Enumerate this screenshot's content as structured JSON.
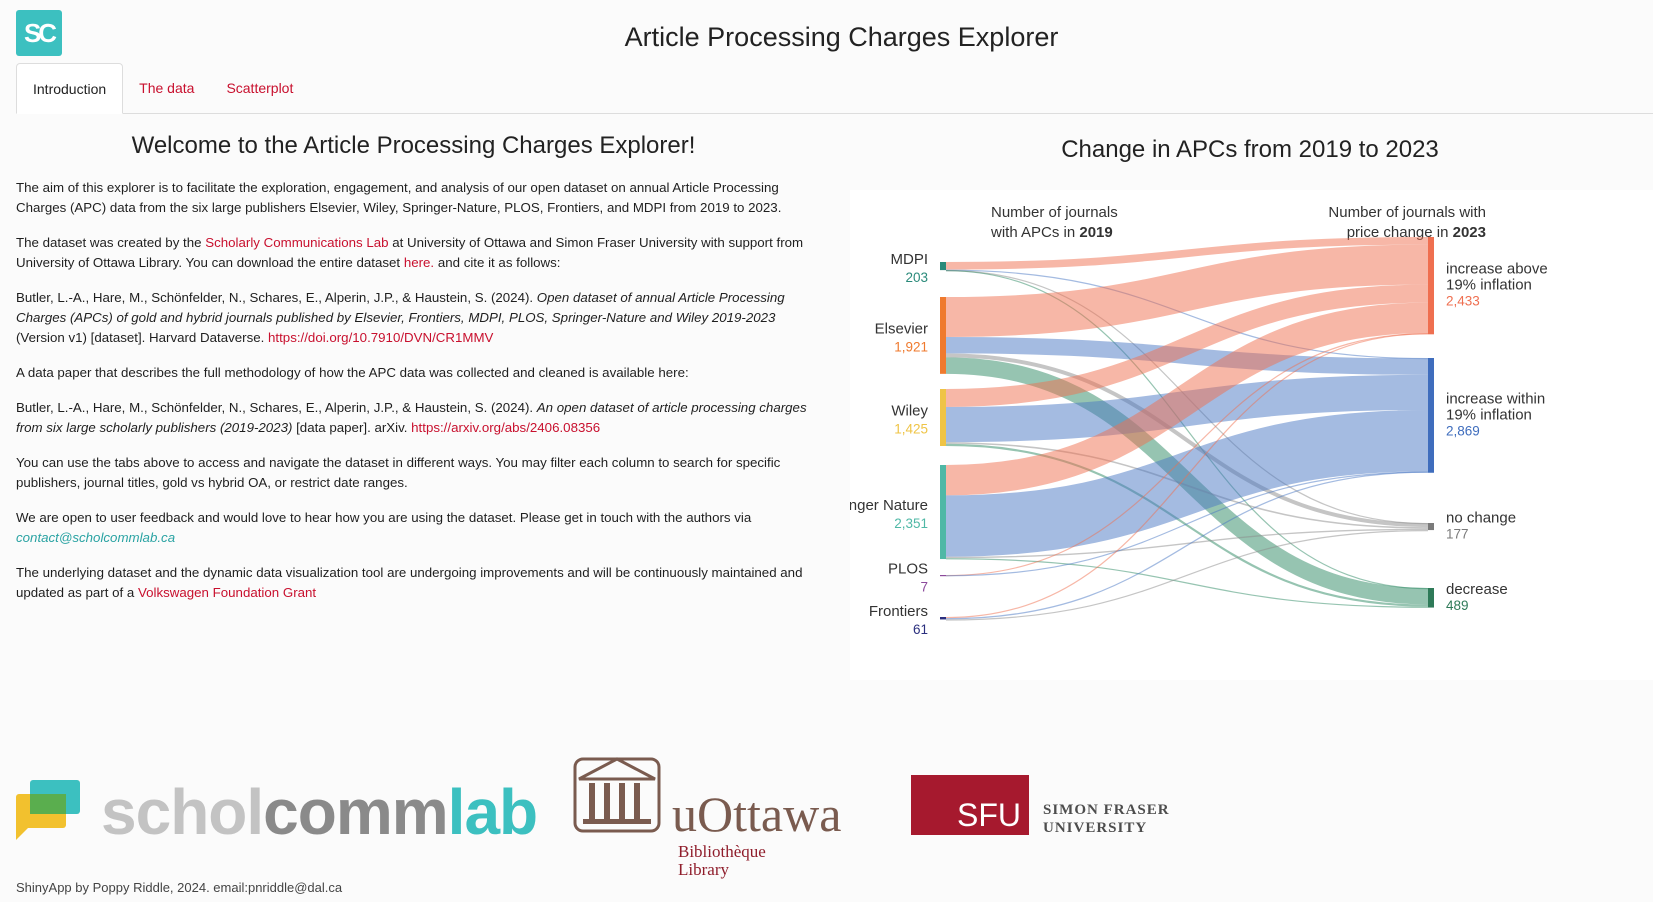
{
  "header": {
    "logo_text": "SC",
    "title": "Article Processing Charges Explorer"
  },
  "tabs": [
    {
      "label": "Introduction"
    },
    {
      "label": "The data"
    },
    {
      "label": "Scatterplot"
    }
  ],
  "intro": {
    "heading": "Welcome to the Article Processing Charges Explorer!",
    "p1": "The aim of this explorer is to facilitate the exploration, engagement, and analysis of our open dataset on annual Article Processing Charges (APC) data from the six large publishers Elsevier, Wiley, Springer-Nature, PLOS, Frontiers, and MDPI from 2019 to 2023.",
    "p2_a": "The dataset was created by the ",
    "p2_link": "Scholarly Communications Lab",
    "p2_b": " at University of Ottawa and Simon Fraser University with support from University of Ottawa Library. You can download the entire dataset ",
    "p2_link2": "here.",
    "p2_c": " and cite it as follows:",
    "cite1_a": "Butler, L.-A., Hare, M., Schönfelder, N., Schares, E., Alperin, J.P., & Haustein, S. (2024). ",
    "cite1_em": "Open dataset of annual Article Processing Charges (APCs) of gold and hybrid journals published by Elsevier, Frontiers, MDPI, PLOS, Springer-Nature and Wiley 2019-2023",
    "cite1_b": " (Version v1) [dataset]. Harvard Dataverse. ",
    "cite1_link": "https://doi.org/10.7910/DVN/CR1MMV",
    "p3": "A data paper that describes the full methodology of how the APC data was collected and cleaned is available here:",
    "cite2_a": "Butler, L.-A., Hare, M., Schönfelder, N., Schares, E., Alperin, J.P., & Haustein, S. (2024). ",
    "cite2_em": "An open dataset of article processing charges from six large scholarly publishers (2019-2023)",
    "cite2_b": " [data paper]. arXiv. ",
    "cite2_link": "https://arxiv.org/abs/2406.08356",
    "p4": "You can use the tabs above to access and navigate the dataset in different ways. You may filter each column to search for specific publishers, journal titles, gold vs hybrid OA, or restrict date ranges.",
    "p5": "We are open to user feedback and would love to hear how you are using the dataset. Please get in touch with the authors via",
    "p5_email": "contact@scholcommlab.ca",
    "p6_a": "The underlying dataset and the dynamic data visualization tool are undergoing improvements and will be continuously maintained and updated as part of a ",
    "p6_link": "Volkswagen Foundation Grant"
  },
  "sankey": {
    "heading": "Change in APCs from 2019 to 2023",
    "left_title_1": "Number of journals",
    "left_title_2a": "with APCs in ",
    "left_title_2b": "2019",
    "right_title_1": "Number of journals with",
    "right_title_2a": "price change in ",
    "right_title_2b": "2023",
    "colors": {
      "increase_above": "#ef6f50",
      "increase_within": "#4a78c4",
      "no_change": "#8c8c8c",
      "decrease": "#2e8a63"
    }
  },
  "chart_data": {
    "type": "sankey",
    "title": "Change in APCs from 2019 to 2023",
    "sources": [
      {
        "name": "MDPI",
        "count": "203",
        "value": 203,
        "color": "#2a8a7a"
      },
      {
        "name": "Elsevier",
        "count": "1,921",
        "value": 1921,
        "color": "#ef7a2e"
      },
      {
        "name": "Wiley",
        "count": "1,425",
        "value": 1425,
        "color": "#efc446"
      },
      {
        "name": "Springer Nature",
        "count": "2,351",
        "value": 2351,
        "color": "#4fb8a6"
      },
      {
        "name": "PLOS",
        "count": "7",
        "value": 7,
        "color": "#8c4a9c"
      },
      {
        "name": "Frontiers",
        "count": "61",
        "value": 61,
        "color": "#2b2f7e"
      }
    ],
    "targets": [
      {
        "name_1": "increase above",
        "name_2": "19% inflation",
        "count": "2,433",
        "value": 2433,
        "color": "#ef6f50"
      },
      {
        "name_1": "increase within",
        "name_2": "19% inflation",
        "count": "2,869",
        "value": 2869,
        "color": "#3f6dbd"
      },
      {
        "name_1": "no change",
        "name_2": "",
        "count": "177",
        "value": 177,
        "color": "#7a7a7a"
      },
      {
        "name_1": "decrease",
        "name_2": "",
        "count": "489",
        "value": 489,
        "color": "#2e7a58"
      }
    ],
    "flows": [
      {
        "source": 0,
        "target": 0,
        "value": 190
      },
      {
        "source": 0,
        "target": 1,
        "value": 10
      },
      {
        "source": 0,
        "target": 2,
        "value": 2
      },
      {
        "source": 0,
        "target": 3,
        "value": 1
      },
      {
        "source": 1,
        "target": 0,
        "value": 1000
      },
      {
        "source": 1,
        "target": 1,
        "value": 410
      },
      {
        "source": 1,
        "target": 2,
        "value": 100
      },
      {
        "source": 1,
        "target": 3,
        "value": 411
      },
      {
        "source": 2,
        "target": 0,
        "value": 450
      },
      {
        "source": 2,
        "target": 1,
        "value": 880
      },
      {
        "source": 2,
        "target": 2,
        "value": 40
      },
      {
        "source": 2,
        "target": 3,
        "value": 55
      },
      {
        "source": 3,
        "target": 0,
        "value": 760
      },
      {
        "source": 3,
        "target": 1,
        "value": 1535
      },
      {
        "source": 3,
        "target": 2,
        "value": 34
      },
      {
        "source": 3,
        "target": 3,
        "value": 22
      },
      {
        "source": 4,
        "target": 0,
        "value": 4
      },
      {
        "source": 4,
        "target": 1,
        "value": 3
      },
      {
        "source": 5,
        "target": 0,
        "value": 29
      },
      {
        "source": 5,
        "target": 1,
        "value": 31
      },
      {
        "source": 5,
        "target": 2,
        "value": 1
      }
    ]
  },
  "footer": {
    "scl_a": "schol",
    "scl_b": "comm",
    "scl_c": "lab",
    "uo_word": "uOttawa",
    "uo_sub_1": "Bibliothèque",
    "uo_sub_2": "Library",
    "sfu_short": "SFU",
    "sfu_name_1": "SIMON FRASER",
    "sfu_name_2": "UNIVERSITY",
    "credit": "ShinyApp by Poppy Riddle, 2024. email:pnriddle@dal.ca"
  }
}
